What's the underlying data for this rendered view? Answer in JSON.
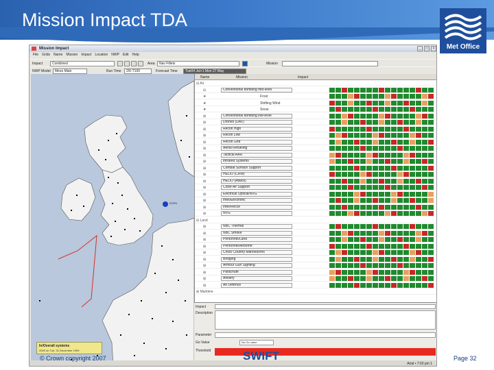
{
  "slide": {
    "title": "Mission Impact TDA",
    "logo_text": "Met Office",
    "copyright": "© Crown copyright 2007",
    "product": "SWIFT",
    "page_number": "Page 32"
  },
  "app": {
    "window_title": "Mission Impact",
    "menu": [
      "File",
      "Grids",
      "Name",
      "Mission",
      "Impact",
      "Location",
      "NWP",
      "Edit",
      "Help"
    ],
    "toolbar1": {
      "impact_label": "Impact",
      "impact_value": "Combined",
      "area_label": "Area",
      "area_value": "Nav Fillets",
      "mission_label": "Mission"
    },
    "toolbar2": {
      "nwp_label": "NWP Model",
      "nwp_value": "Meso Main",
      "run_label": "Run Time",
      "run_value": "2/6-T100",
      "forecast_label": "Forecast Time",
      "forecast_value": "Tue04 Jul+1 Mon 27 May"
    },
    "map": {
      "marker_label": "EGPK",
      "legend_title": "In/Overall systems",
      "legend_sub": "2000 on Tue, 31 December 1999"
    },
    "panel": {
      "col_name": "Name",
      "col_mission": "Mission",
      "col_impact": "Impact",
      "rows": [
        {
          "tree": "⊟ Air",
          "mission": "",
          "sub": ""
        },
        {
          "tree": "⊟",
          "mission": "Conventional bombing mid-level",
          "sub": ""
        },
        {
          "tree": "★",
          "mission": "",
          "sub": "Frost"
        },
        {
          "tree": "★",
          "mission": "",
          "sub": "Shifting Wind"
        },
        {
          "tree": "★",
          "mission": "",
          "sub": "Snow"
        },
        {
          "tree": "⊞",
          "mission": "Conventional bombing low-level",
          "sub": ""
        },
        {
          "tree": "⊞",
          "mission": "Drones (UAV)",
          "sub": ""
        },
        {
          "tree": "⊞",
          "mission": "Recon High",
          "sub": ""
        },
        {
          "tree": "⊞",
          "mission": "Recon Low",
          "sub": ""
        },
        {
          "tree": "⊞",
          "mission": "Recon Gnd",
          "sub": ""
        },
        {
          "tree": "⊞",
          "mission": "Aerial Refueling",
          "sub": ""
        },
        {
          "tree": "⊞",
          "mission": "Tactical AAR",
          "sub": ""
        },
        {
          "tree": "⊞",
          "mission": "Infrared Systems",
          "sub": ""
        },
        {
          "tree": "⊞",
          "mission": "Combat Surface Support",
          "sub": ""
        },
        {
          "tree": "⊞",
          "mission": "HELIO (CRW)",
          "sub": ""
        },
        {
          "tree": "⊞",
          "mission": "HELIO (Attack)",
          "sub": ""
        },
        {
          "tree": "⊞",
          "mission": "Close Air Support",
          "sub": ""
        },
        {
          "tree": "⊞",
          "mission": "Electrical Optical/NVG",
          "sub": ""
        },
        {
          "tree": "⊞",
          "mission": "Intel/Electronic",
          "sub": ""
        },
        {
          "tree": "⊞",
          "mission": "Intel/Recce",
          "sub": ""
        },
        {
          "tree": "⊞",
          "mission": "NVG",
          "sub": ""
        },
        {
          "tree": "⊟ Land",
          "mission": "",
          "sub": ""
        },
        {
          "tree": "⊞",
          "mission": "NBC Thermal",
          "sub": ""
        },
        {
          "tree": "⊞",
          "mission": "NBC Smoke",
          "sub": ""
        },
        {
          "tree": "⊞",
          "mission": "Personnel/Land",
          "sub": ""
        },
        {
          "tree": "⊞",
          "mission": "Personnel/Airborne",
          "sub": ""
        },
        {
          "tree": "⊞",
          "mission": "Cross Country Manoeuvres",
          "sub": ""
        },
        {
          "tree": "⊞",
          "mission": "Bridging",
          "sub": ""
        },
        {
          "tree": "⊞",
          "mission": "Armour Gun Sighting",
          "sub": ""
        },
        {
          "tree": "⊞",
          "mission": "Parachute",
          "sub": ""
        },
        {
          "tree": "⊞",
          "mission": "Artillery",
          "sub": ""
        },
        {
          "tree": "⊞",
          "mission": "Air Defence",
          "sub": ""
        },
        {
          "tree": "⊞ Maritime",
          "mission": "",
          "sub": ""
        }
      ]
    },
    "details": {
      "impact_label": "Impact",
      "description_label": "Description",
      "parameter_label": "Parameter",
      "go_value_label": "Go Value",
      "go_value": "No-Go value",
      "threshold_label": "Threshold"
    },
    "status": "Arial • 7:03 pm 1",
    "colors": {
      "go": "#1f8a2e",
      "nogo": "#c62828",
      "marginal": "#e7a15f"
    }
  }
}
